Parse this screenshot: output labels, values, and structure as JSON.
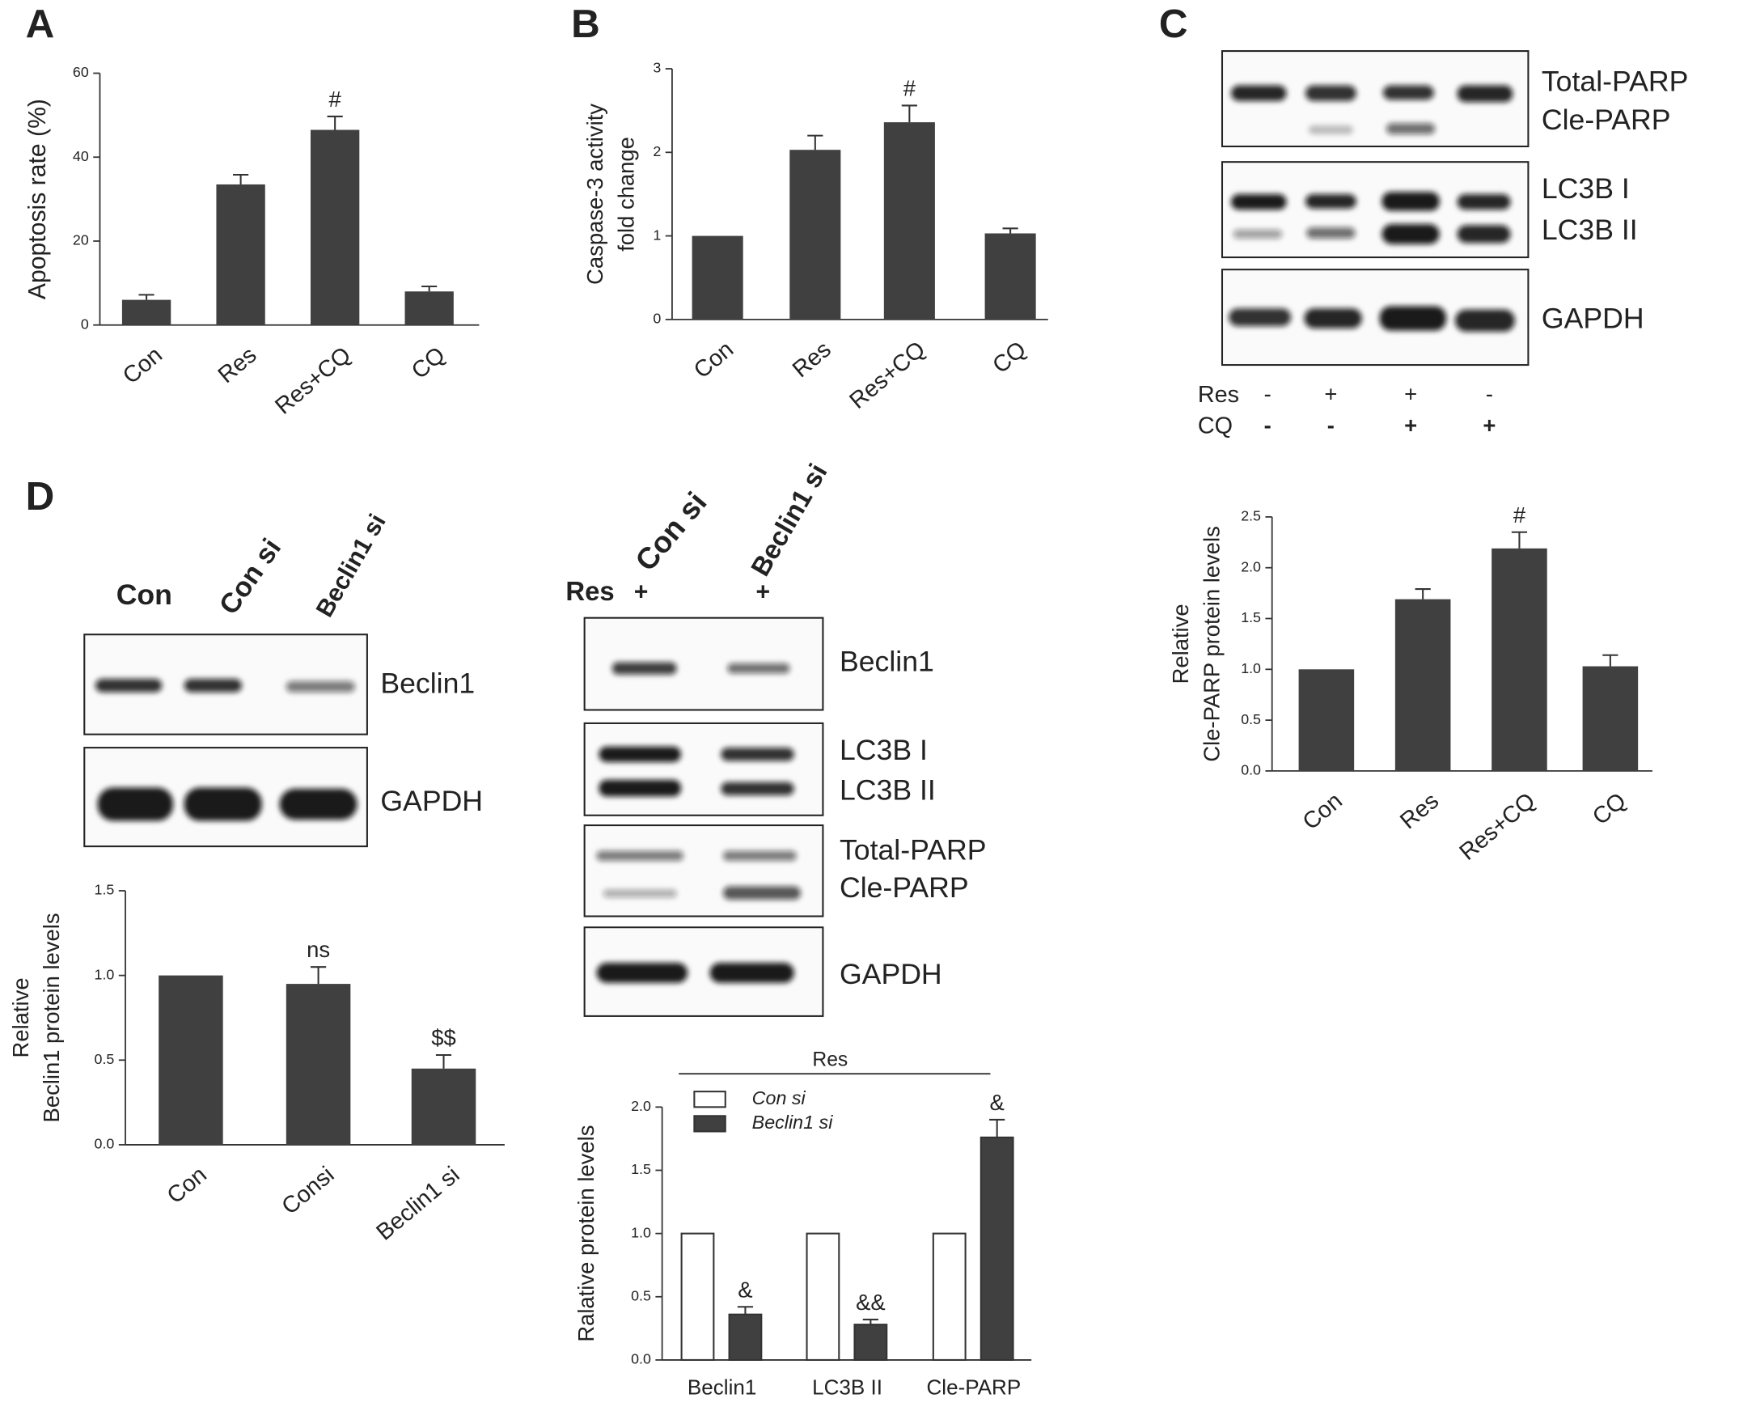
{
  "panel_labels": [
    "A",
    "B",
    "C",
    "D"
  ],
  "chart_data": [
    {
      "type": "bar",
      "y_label": [
        "Apoptosis rate (%)"
      ],
      "categories": [
        "Con",
        "Res",
        "Res+CQ",
        "CQ"
      ],
      "values": [
        6,
        33.5,
        46.5,
        8
      ],
      "errors": [
        1.2,
        2.3,
        3.2,
        1.2
      ],
      "color": "#404040",
      "ylim": [
        0,
        60
      ],
      "yticks": [
        0,
        20,
        40,
        60
      ],
      "annotations": [
        {
          "category": "Res+CQ",
          "text": "#"
        }
      ]
    },
    {
      "type": "bar",
      "y_label": [
        "Caspase-3 activity",
        "fold change"
      ],
      "categories": [
        "Con",
        "Res",
        "Res+CQ",
        "CQ"
      ],
      "values": [
        1,
        2.03,
        2.36,
        1.03
      ],
      "errors": [
        null,
        0.17,
        0.2,
        0.06
      ],
      "color": "#404040",
      "ylim": [
        0,
        3
      ],
      "yticks": [
        0,
        1,
        2,
        3
      ],
      "annotations": [
        {
          "category": "Res+CQ",
          "text": "#"
        }
      ]
    },
    {
      "type": "bar",
      "y_label": [
        "Relative",
        "Cle-PARP protein levels"
      ],
      "categories": [
        "Con",
        "Res",
        "Res+CQ",
        "CQ"
      ],
      "values": [
        1,
        1.69,
        2.19,
        1.03
      ],
      "errors": [
        null,
        0.1,
        0.16,
        0.11
      ],
      "color": "#404040",
      "ylim": [
        0,
        2.5
      ],
      "yticks": [
        {
          "value": 0,
          "label": "0.0"
        },
        0.5,
        {
          "value": 1,
          "label": "1.0"
        },
        1.5,
        {
          "value": 2,
          "label": "2.0"
        },
        2.5
      ],
      "annotations": [
        {
          "category": "Res+CQ",
          "text": "#"
        }
      ]
    },
    {
      "type": "bar",
      "y_label": [
        "Relative",
        "Beclin1 protein levels"
      ],
      "categories": [
        "Con",
        "Consi",
        "Beclin1 si"
      ],
      "values": [
        1,
        0.95,
        0.45
      ],
      "errors": [
        null,
        0.1,
        0.08
      ],
      "color": "#404040",
      "ylim": [
        0,
        1.5
      ],
      "yticks": [
        {
          "value": 0,
          "label": "0.0"
        },
        0.5,
        {
          "value": 1,
          "label": "1.0"
        },
        1.5
      ],
      "annotations": [
        {
          "category": "Consi",
          "text": "ns"
        },
        {
          "category": "Beclin1 si",
          "text": "$$"
        }
      ]
    },
    {
      "type": "bar",
      "header": "Res",
      "y_label": [
        "Ralative protein levels"
      ],
      "categories": [
        "Beclin1",
        "LC3B II",
        "Cle-PARP"
      ],
      "series": [
        {
          "name": "Con si",
          "color": "#ffffff",
          "values": [
            1,
            1,
            1
          ],
          "errors": [
            null,
            null,
            null
          ]
        },
        {
          "name": "Beclin1 si",
          "color": "#404040",
          "values": [
            0.36,
            0.28,
            1.76
          ],
          "errors": [
            0.06,
            0.04,
            0.14
          ]
        }
      ],
      "legend": "top-left",
      "ylim": [
        0,
        2
      ],
      "yticks": [
        {
          "value": 0,
          "label": "0.0"
        },
        0.5,
        {
          "value": 1,
          "label": "1.0"
        },
        1.5,
        {
          "value": 2,
          "label": "2.0"
        }
      ],
      "annotations": [
        {
          "category": "Beclin1",
          "series": "Beclin1 si",
          "text": "&"
        },
        {
          "category": "LC3B II",
          "series": "Beclin1 si",
          "text": "&&"
        },
        {
          "category": "Cle-PARP",
          "series": "Beclin1 si",
          "text": "&"
        }
      ]
    }
  ],
  "blots": [
    {
      "labels": [
        "Total-PARP",
        "Cle-PARP",
        "LC3B I",
        "LC3B II",
        "GAPDH"
      ],
      "treatments": [
        {
          "name": "Res",
          "marks": [
            "-",
            "+",
            "+",
            "-"
          ]
        },
        {
          "name": "CQ",
          "marks": [
            "-",
            "-",
            "+",
            "+"
          ]
        }
      ]
    },
    {
      "lanes": [
        "Con",
        "Con si",
        "Beclin1 si"
      ],
      "labels": [
        "Beclin1",
        "GAPDH"
      ]
    },
    {
      "lanes": [
        "Con si",
        "Beclin1 si"
      ],
      "treatments": [
        {
          "name": "Res",
          "marks": [
            "+",
            "+"
          ]
        }
      ],
      "labels": [
        "Beclin1",
        "LC3B I",
        "LC3B II",
        "Total-PARP",
        "Cle-PARP",
        "GAPDH"
      ]
    }
  ]
}
